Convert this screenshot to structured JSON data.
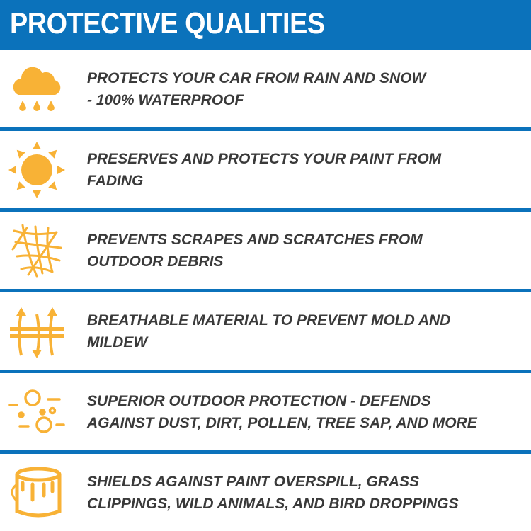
{
  "header": {
    "title": "PROTECTIVE QUALITIES"
  },
  "colors": {
    "brand_blue": "#0b72bb",
    "icon_orange": "#f8b236",
    "text": "#3a3a3a"
  },
  "features": [
    {
      "icon": "cloud-rain-icon",
      "text": "PROTECTS YOUR CAR FROM RAIN AND SNOW\n- 100% WATERPROOF"
    },
    {
      "icon": "sun-icon",
      "text": "PRESERVES AND PROTECTS YOUR PAINT FROM\nFADING"
    },
    {
      "icon": "scratch-mesh-icon",
      "text": "PREVENTS SCRAPES AND SCRATCHES FROM\nOUTDOOR DEBRIS"
    },
    {
      "icon": "breathable-arrows-icon",
      "text": "BREATHABLE MATERIAL TO PREVENT MOLD AND\nMILDEW"
    },
    {
      "icon": "dust-particles-icon",
      "text": "SUPERIOR OUTDOOR PROTECTION - DEFENDS\nAGAINST DUST, DIRT, POLLEN, TREE SAP, AND MORE"
    },
    {
      "icon": "paint-bucket-icon",
      "text": "SHIELDS AGAINST PAINT OVERSPILL, GRASS\nCLIPPINGS, WILD ANIMALS, AND BIRD DROPPINGS"
    }
  ]
}
